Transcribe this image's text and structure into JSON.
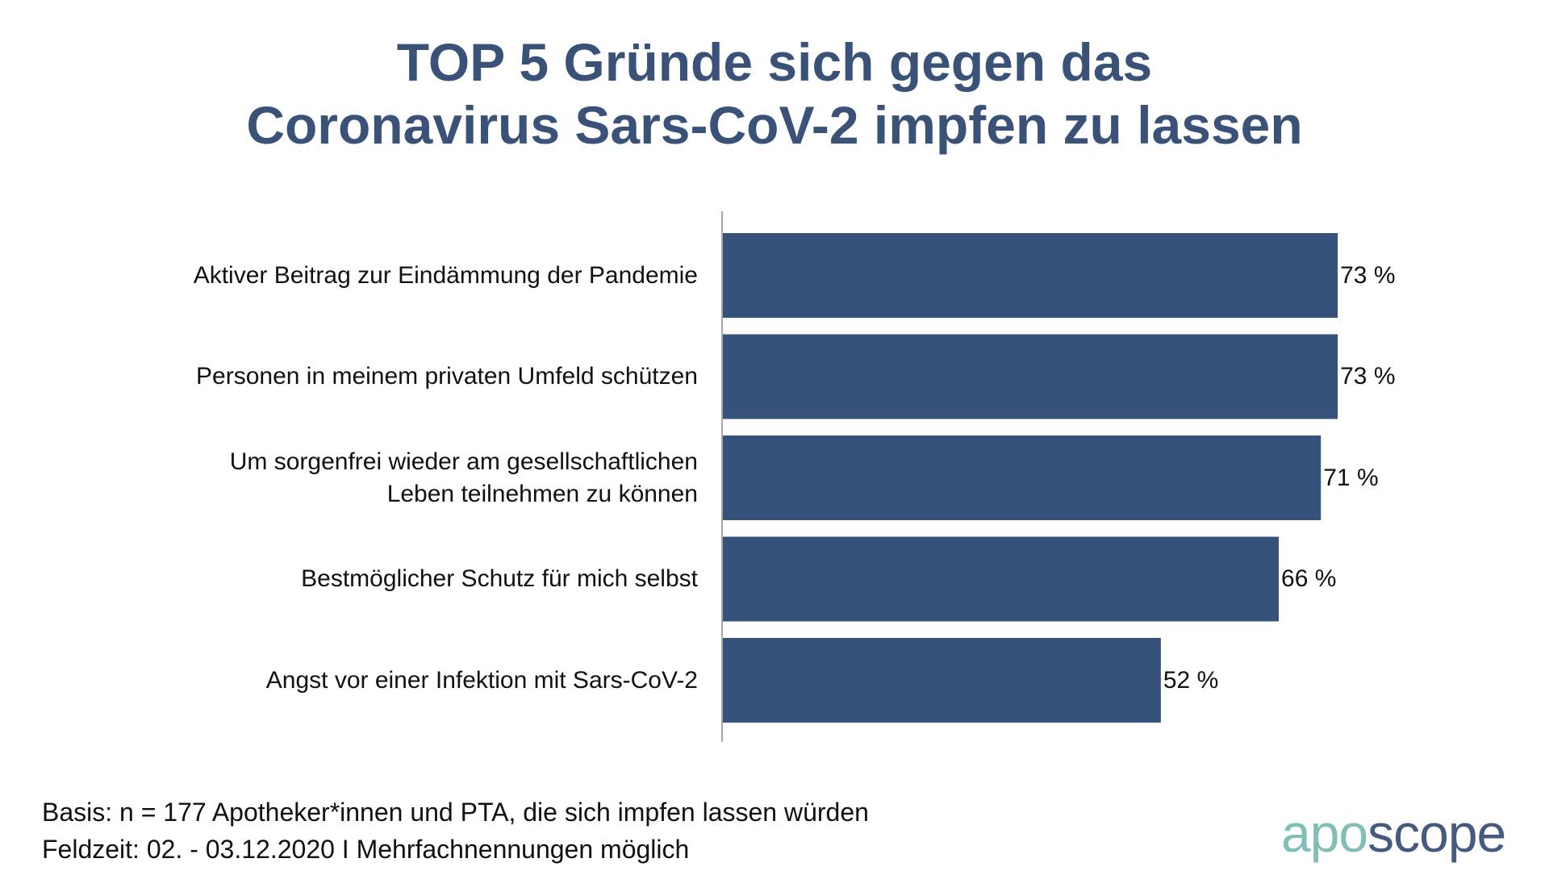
{
  "chart_data": {
    "type": "bar",
    "orientation": "horizontal",
    "title": "TOP 5 Gründe sich gegen das Coronavirus Sars-CoV-2 impfen zu lassen",
    "title_lines": [
      "TOP 5 Gründe sich gegen das",
      "Coronavirus Sars-CoV-2 impfen zu lassen"
    ],
    "categories": [
      [
        "Aktiver Beitrag zur Eindämmung der Pandemie"
      ],
      [
        "Personen in meinem privaten Umfeld schützen"
      ],
      [
        "Um sorgenfrei wieder am gesellschaftlichen",
        "Leben teilnehmen zu können"
      ],
      [
        "Bestmöglicher Schutz für mich selbst"
      ],
      [
        "Angst vor einer Infektion mit Sars-CoV-2"
      ]
    ],
    "values": [
      73,
      73,
      71,
      66,
      52
    ],
    "value_labels": [
      "73 %",
      "73 %",
      "71 %",
      "66 %",
      "52 %"
    ],
    "unit": "%",
    "xlim": [
      0,
      100
    ],
    "grid": false,
    "bar_color": "#36527a"
  },
  "footer": {
    "line1": "Basis: n = 177 Apotheker*innen und PTA, die sich impfen lassen würden",
    "line2": "Feldzeit: 02. - 03.12.2020 I Mehrfachnennungen möglich"
  },
  "logo": {
    "part1": "apo",
    "part2": "scope",
    "color1": "#7fbfb6",
    "color2": "#455a7e"
  }
}
